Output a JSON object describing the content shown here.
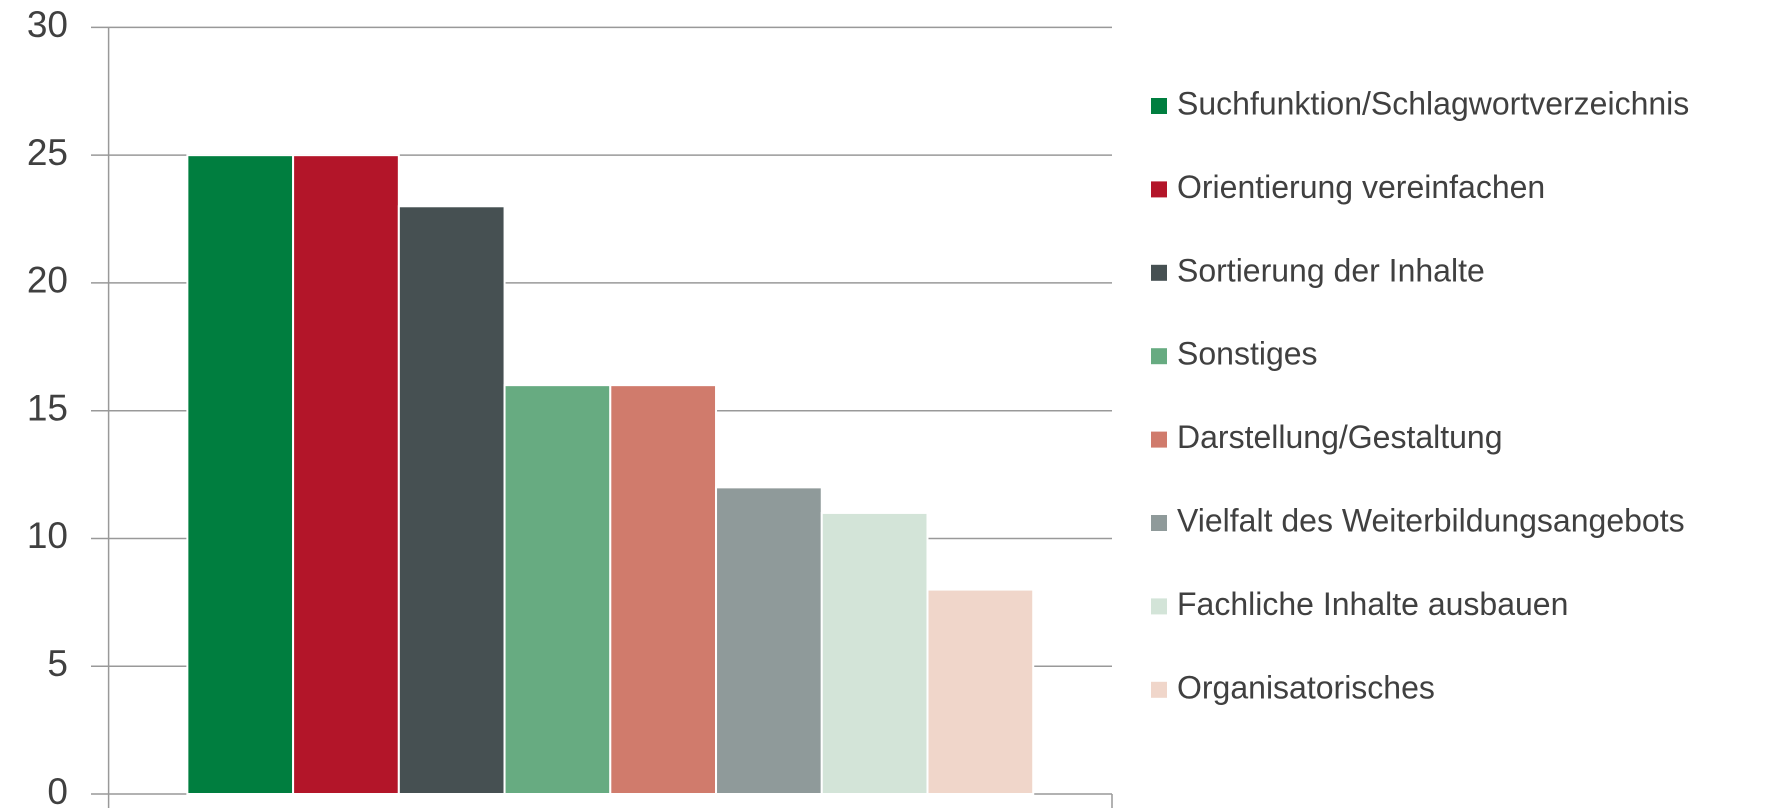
{
  "chart_data": {
    "type": "bar",
    "categories": [
      null
    ],
    "series": [
      {
        "name": "Suchfunktion/Schlagwortverzeichnis",
        "color": "#007e3f",
        "values": [
          25
        ]
      },
      {
        "name": "Orientierung vereinfachen",
        "color": "#b31529",
        "values": [
          25
        ]
      },
      {
        "name": "Sortierung der Inhalte",
        "color": "#465052",
        "values": [
          23
        ]
      },
      {
        "name": "Sonstiges",
        "color": "#67ab81",
        "values": [
          16
        ]
      },
      {
        "name": "Darstellung/Gestaltung",
        "color": "#d07b6c",
        "values": [
          16
        ]
      },
      {
        "name": "Vielfalt des Weiterbildungsangebots",
        "color": "#8f9a9a",
        "values": [
          12
        ]
      },
      {
        "name": "Fachliche Inhalte ausbauen",
        "color": "#d3e4d8",
        "values": [
          11
        ]
      },
      {
        "name": "Organisatorisches",
        "color": "#f0d6ca",
        "values": [
          8
        ]
      }
    ],
    "ylim": [
      0,
      30
    ],
    "yticks": [
      0,
      5,
      10,
      15,
      20,
      25,
      30
    ],
    "grid": true,
    "legend": "right"
  }
}
